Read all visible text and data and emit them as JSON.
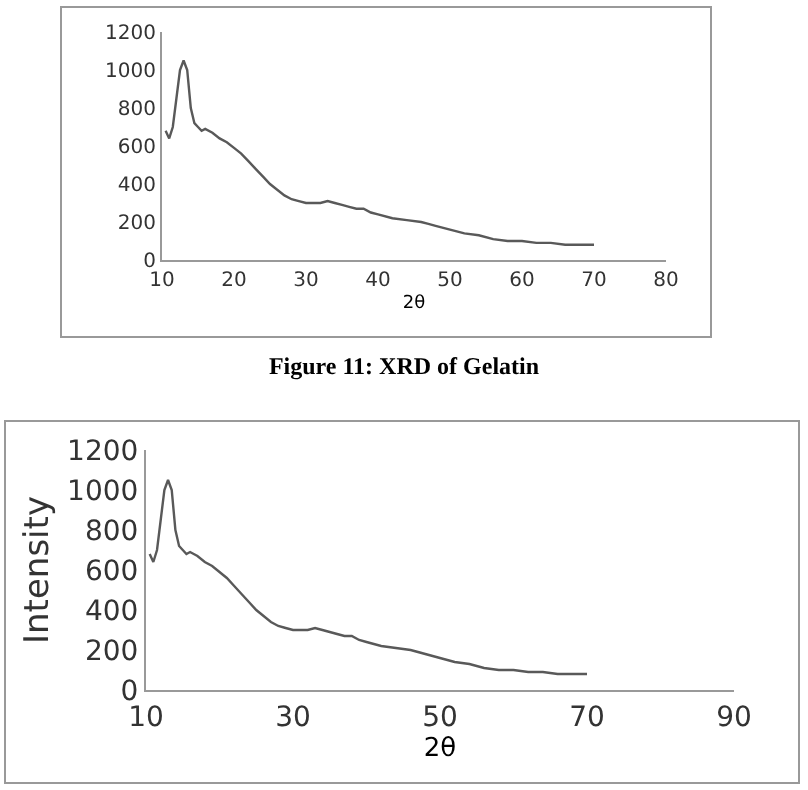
{
  "chart_data": [
    {
      "type": "line",
      "xlabel": "2θ",
      "annotations": [
        "Figure 11: XRD of Gelatin"
      ],
      "xlim": [
        10,
        80
      ],
      "xticks": [
        10,
        20,
        30,
        40,
        50,
        60,
        70,
        80
      ],
      "ylim": [
        0,
        1200
      ],
      "yticks": [
        0,
        200,
        400,
        600,
        800,
        1000,
        1200
      ],
      "marker": "none",
      "line_style": "solid",
      "series": [
        {
          "color": "#595959",
          "x": [
            10.5,
            11,
            11.5,
            12,
            12.5,
            13,
            13.5,
            14,
            14.5,
            15,
            15.5,
            16,
            17,
            18,
            19,
            20,
            21,
            22,
            23,
            24,
            25,
            26,
            27,
            28,
            29,
            30,
            31,
            32,
            33,
            34,
            35,
            36,
            37,
            38,
            39,
            40,
            42,
            44,
            46,
            47,
            48,
            50,
            52,
            54,
            56,
            58,
            60,
            62,
            64,
            66,
            68,
            70
          ],
          "values": [
            680,
            640,
            700,
            850,
            1000,
            1050,
            1000,
            800,
            720,
            700,
            680,
            690,
            670,
            640,
            620,
            590,
            560,
            520,
            480,
            440,
            400,
            370,
            340,
            320,
            310,
            300,
            300,
            300,
            310,
            300,
            290,
            280,
            270,
            270,
            250,
            240,
            220,
            210,
            200,
            190,
            180,
            160,
            140,
            130,
            110,
            100,
            100,
            90,
            90,
            80,
            80,
            80
          ]
        }
      ]
    },
    {
      "type": "line",
      "xlabel": "2θ",
      "ylabel": "Intensity",
      "xlim": [
        10,
        90
      ],
      "xticks": [
        10,
        30,
        50,
        70,
        90
      ],
      "ylim": [
        0,
        1200
      ],
      "yticks": [
        0,
        200,
        400,
        600,
        800,
        1000,
        1200
      ],
      "marker": "none",
      "line_style": "solid",
      "series": [
        {
          "color": "#595959",
          "x": [
            10.5,
            11,
            11.5,
            12,
            12.5,
            13,
            13.5,
            14,
            14.5,
            15,
            15.5,
            16,
            17,
            18,
            19,
            20,
            21,
            22,
            23,
            24,
            25,
            26,
            27,
            28,
            29,
            30,
            31,
            32,
            33,
            34,
            35,
            36,
            37,
            38,
            39,
            40,
            42,
            44,
            46,
            47,
            48,
            50,
            52,
            54,
            56,
            58,
            60,
            62,
            64,
            66,
            68,
            70
          ],
          "values": [
            680,
            640,
            700,
            850,
            1000,
            1050,
            1000,
            800,
            720,
            700,
            680,
            690,
            670,
            640,
            620,
            590,
            560,
            520,
            480,
            440,
            400,
            370,
            340,
            320,
            310,
            300,
            300,
            300,
            310,
            300,
            290,
            280,
            270,
            270,
            250,
            240,
            220,
            210,
            200,
            190,
            180,
            160,
            140,
            130,
            110,
            100,
            100,
            90,
            90,
            80,
            80,
            80
          ]
        }
      ]
    }
  ]
}
